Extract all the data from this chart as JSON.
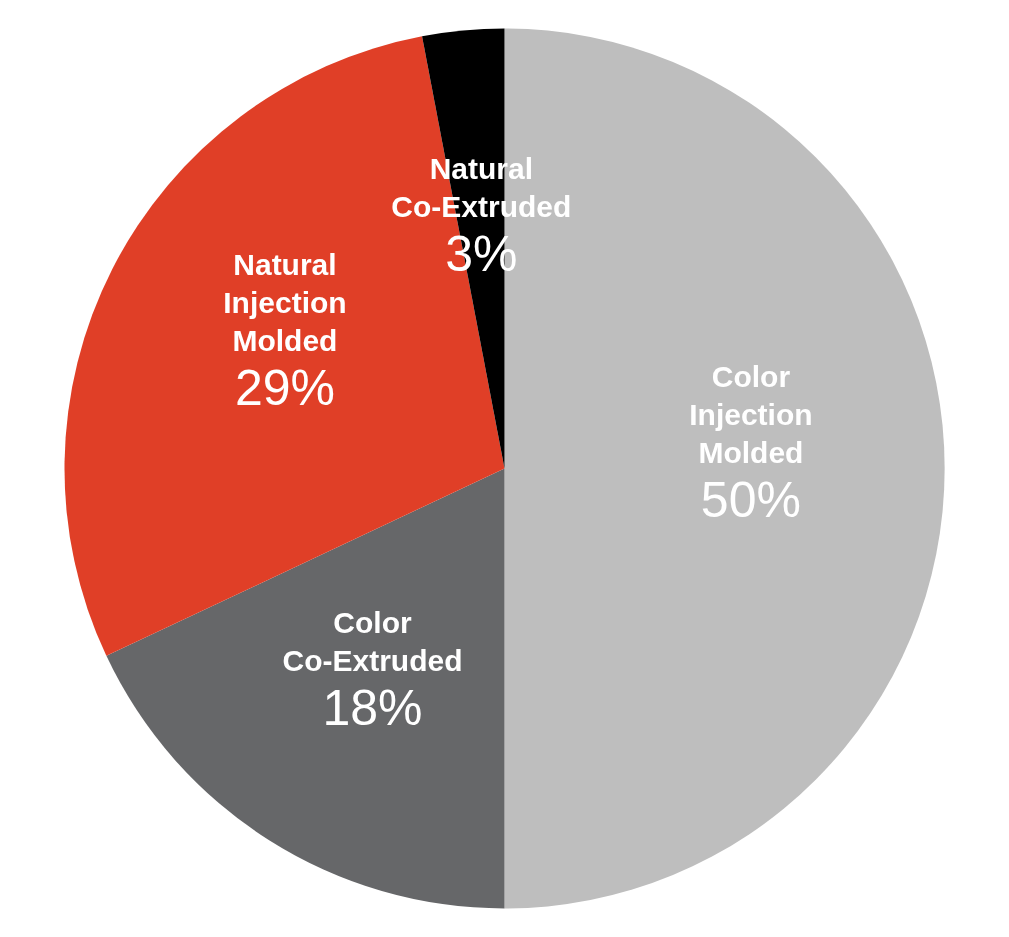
{
  "chart_data": {
    "type": "pie",
    "categories": [
      "Color Injection Molded",
      "Color Co-Extruded",
      "Natural Injection Molded",
      "Natural Co-Extruded"
    ],
    "values": [
      50,
      18,
      29,
      3
    ],
    "colors": [
      "#bebebe",
      "#666769",
      "#e03f27",
      "#000000"
    ],
    "value_labels": [
      "50%",
      "18%",
      "29%",
      "3%"
    ]
  }
}
